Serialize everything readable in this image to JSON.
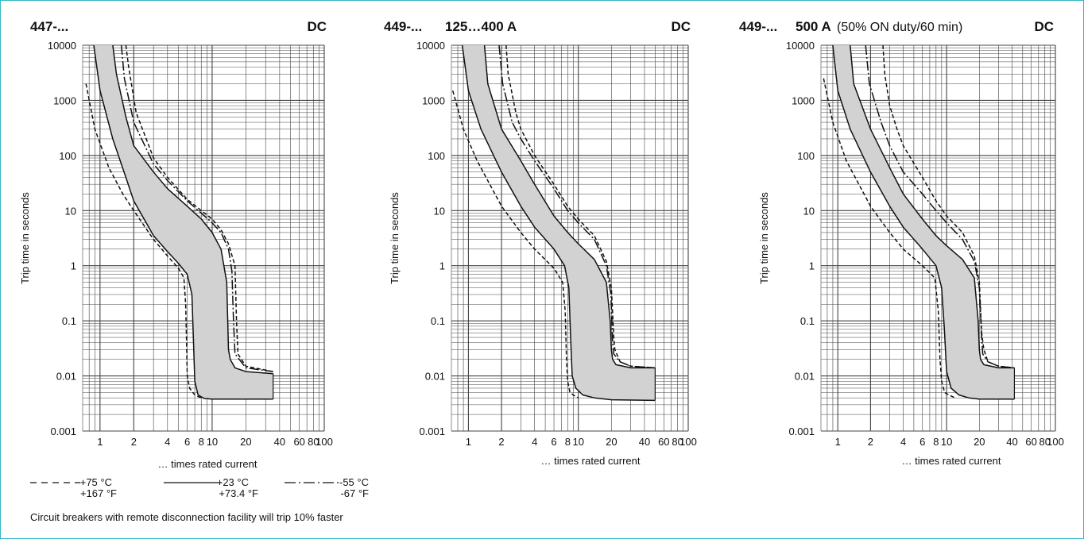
{
  "chart_data": [
    {
      "type": "line",
      "title": "447-...",
      "subtitle": "",
      "note": "",
      "current_type": "DC",
      "xlabel": "… times rated current",
      "ylabel": "Trip time in seconds",
      "x_scale": "log",
      "y_scale": "log",
      "xlim": [
        0.7,
        100
      ],
      "ylim": [
        0.001,
        10000
      ],
      "grid": true,
      "x_ticks": [
        "1",
        "2",
        "4",
        "6",
        "8",
        "10",
        "20",
        "40",
        "60",
        "80",
        "100"
      ],
      "y_ticks": [
        "0.001",
        "0.01",
        "0.1",
        "1",
        "10",
        "100",
        "1000",
        "10000"
      ],
      "series": [
        {
          "style": "dashed",
          "x": [
            0.75,
            0.9,
            1.2,
            1.6,
            2,
            3,
            4,
            5,
            5.6,
            5.8,
            5.9,
            6.0,
            6.3,
            7,
            8
          ],
          "y": [
            2000,
            300,
            60,
            20,
            10,
            3,
            1.5,
            0.9,
            0.6,
            0.2,
            0.05,
            0.01,
            0.006,
            0.0045,
            0.004
          ]
        },
        {
          "style": "solid",
          "x": [
            0.88,
            1,
            1.3,
            1.7,
            2,
            3,
            4,
            5,
            6,
            6.6,
            6.8,
            7,
            7.5,
            8.5,
            10,
            35
          ],
          "y": [
            10000,
            1500,
            200,
            40,
            15,
            3.5,
            1.8,
            1.1,
            0.7,
            0.3,
            0.05,
            0.008,
            0.0045,
            0.0039,
            0.0038,
            0.0038
          ]
        },
        {
          "style": "solid",
          "x": [
            1.3,
            1.4,
            1.7,
            2,
            3,
            4,
            6,
            8,
            10,
            12,
            13.5,
            14,
            14.5,
            16,
            20,
            35
          ],
          "y": [
            10000,
            3000,
            500,
            150,
            50,
            25,
            12,
            7,
            4,
            2,
            0.5,
            0.03,
            0.02,
            0.014,
            0.012,
            0.011
          ]
        },
        {
          "style": "dash-dot",
          "x": [
            1.55,
            1.65,
            2,
            3,
            4,
            6,
            8,
            10,
            12,
            14,
            15,
            15.5,
            16,
            20,
            35
          ],
          "y": [
            10000,
            2500,
            400,
            70,
            35,
            15,
            9,
            6,
            4,
            2,
            0.8,
            0.1,
            0.025,
            0.014,
            0.012
          ]
        },
        {
          "style": "dashed",
          "x": [
            1.7,
            1.8,
            2.1,
            3,
            4,
            6,
            8,
            10,
            12,
            14,
            16,
            16.5,
            17,
            20,
            35
          ],
          "y": [
            10000,
            4000,
            600,
            90,
            40,
            16,
            10,
            7,
            4.5,
            2.5,
            1,
            0.1,
            0.025,
            0.015,
            0.012
          ]
        }
      ]
    },
    {
      "type": "line",
      "title": "449-...",
      "subtitle": "125…400 A",
      "note": "",
      "current_type": "DC",
      "xlabel": "… times rated current",
      "ylabel": "Trip time in seconds",
      "x_scale": "log",
      "y_scale": "log",
      "xlim": [
        0.7,
        100
      ],
      "ylim": [
        0.001,
        10000
      ],
      "grid": true,
      "x_ticks": [
        "1",
        "2",
        "4",
        "6",
        "8",
        "10",
        "20",
        "40",
        "60",
        "80",
        "100"
      ],
      "y_ticks": [
        "0.001",
        "0.01",
        "0.1",
        "1",
        "10",
        "100",
        "1000",
        "10000"
      ],
      "series": [
        {
          "style": "dashed",
          "x": [
            0.72,
            0.9,
            1.2,
            2,
            3,
            4,
            6,
            7.2,
            7.6,
            7.8,
            8,
            8.4,
            9,
            10
          ],
          "y": [
            1500,
            300,
            80,
            12,
            4,
            2,
            0.9,
            0.5,
            0.15,
            0.02,
            0.008,
            0.005,
            0.0045,
            0.004
          ]
        },
        {
          "style": "solid",
          "x": [
            0.88,
            1,
            1.3,
            2,
            3,
            4,
            6,
            7.5,
            8.2,
            8.5,
            8.8,
            9.5,
            11,
            14,
            20,
            50
          ],
          "y": [
            10000,
            1500,
            300,
            50,
            12,
            5,
            2,
            1,
            0.4,
            0.05,
            0.01,
            0.006,
            0.0045,
            0.004,
            0.0037,
            0.0036
          ]
        },
        {
          "style": "solid",
          "x": [
            1.4,
            1.5,
            2,
            3,
            4,
            6,
            8,
            10,
            14,
            18,
            19.5,
            20,
            20.5,
            22,
            30,
            50
          ],
          "y": [
            10000,
            2000,
            300,
            80,
            30,
            8,
            4,
            2.5,
            1.3,
            0.5,
            0.1,
            0.03,
            0.02,
            0.016,
            0.014,
            0.014
          ]
        },
        {
          "style": "dash-dot",
          "x": [
            1.9,
            2.05,
            2.5,
            3,
            4,
            6,
            8,
            10,
            14,
            18,
            19.8,
            20.5,
            21,
            24,
            30,
            50
          ],
          "y": [
            10000,
            2000,
            400,
            200,
            80,
            25,
            10,
            6,
            3,
            1,
            0.3,
            0.04,
            0.025,
            0.018,
            0.015,
            0.014
          ]
        },
        {
          "style": "dashed",
          "x": [
            2.2,
            2.3,
            2.7,
            3,
            4,
            6,
            8,
            10,
            14,
            18,
            20,
            21,
            21.5,
            24,
            30,
            50
          ],
          "y": [
            10000,
            3000,
            600,
            300,
            100,
            30,
            12,
            7,
            3.5,
            1.2,
            0.4,
            0.05,
            0.03,
            0.018,
            0.015,
            0.014
          ]
        }
      ]
    },
    {
      "type": "line",
      "title": "449-...",
      "subtitle": "500 A",
      "note": "(50% ON duty/60 min)",
      "current_type": "DC",
      "xlabel": "… times rated current",
      "ylabel": "Trip time in seconds",
      "x_scale": "log",
      "y_scale": "log",
      "xlim": [
        0.7,
        100
      ],
      "ylim": [
        0.001,
        10000
      ],
      "grid": true,
      "x_ticks": [
        "1",
        "2",
        "4",
        "6",
        "8",
        "10",
        "20",
        "40",
        "60",
        "80",
        "100"
      ],
      "y_ticks": [
        "0.001",
        "0.01",
        "0.1",
        "1",
        "10",
        "100",
        "1000",
        "10000"
      ],
      "series": [
        {
          "style": "dashed",
          "x": [
            0.74,
            0.9,
            1.2,
            2,
            3,
            4,
            6,
            7.8,
            8.4,
            8.7,
            9,
            9.6,
            10.5,
            12
          ],
          "y": [
            2500,
            400,
            80,
            12,
            4,
            2,
            1,
            0.6,
            0.15,
            0.02,
            0.008,
            0.005,
            0.0045,
            0.004
          ]
        },
        {
          "style": "solid",
          "x": [
            0.9,
            1,
            1.3,
            2,
            3,
            4,
            6,
            8,
            9,
            9.5,
            10,
            11,
            13,
            16,
            20,
            42
          ],
          "y": [
            10000,
            1500,
            300,
            50,
            12,
            5,
            2,
            1,
            0.4,
            0.08,
            0.012,
            0.006,
            0.0045,
            0.004,
            0.0038,
            0.0038
          ]
        },
        {
          "style": "solid",
          "x": [
            1.3,
            1.4,
            2,
            3,
            4,
            6,
            8,
            10,
            14,
            18,
            19.5,
            20,
            20.5,
            22,
            30,
            42
          ],
          "y": [
            10000,
            2000,
            300,
            60,
            20,
            7,
            3.5,
            2.3,
            1.3,
            0.6,
            0.1,
            0.03,
            0.02,
            0.016,
            0.014,
            0.014
          ]
        },
        {
          "style": "dash-dot",
          "x": [
            1.8,
            1.95,
            2.5,
            3,
            4,
            6,
            8,
            10,
            14,
            18,
            20,
            21,
            21.5,
            24,
            30,
            42
          ],
          "y": [
            10000,
            2000,
            400,
            150,
            50,
            20,
            10,
            6,
            3,
            1.2,
            0.4,
            0.05,
            0.025,
            0.018,
            0.015,
            0.014
          ]
        },
        {
          "style": "dashed",
          "x": [
            2.6,
            2.7,
            3,
            3.5,
            4,
            6,
            8,
            10,
            14,
            18,
            20,
            21,
            22,
            24,
            30,
            42
          ],
          "y": [
            10000,
            3000,
            800,
            300,
            150,
            40,
            15,
            8,
            4,
            1.5,
            0.5,
            0.06,
            0.03,
            0.018,
            0.015,
            0.014
          ]
        }
      ]
    }
  ],
  "legend": [
    {
      "style": "dashed",
      "celsius": "+75 °C",
      "fahrenheit": "+167 °F"
    },
    {
      "style": "solid",
      "celsius": "+23 °C",
      "fahrenheit": "+73.4 °F"
    },
    {
      "style": "dash-dot",
      "celsius": "-55 °C",
      "fahrenheit": "-67 °F"
    }
  ],
  "footnote": "Circuit breakers with remote disconnection facility will trip 10% faster",
  "colors": {
    "frame": "#35b7c8",
    "band_fill": "#d2d2d2",
    "grid": "#444444",
    "curve": "#111111"
  }
}
